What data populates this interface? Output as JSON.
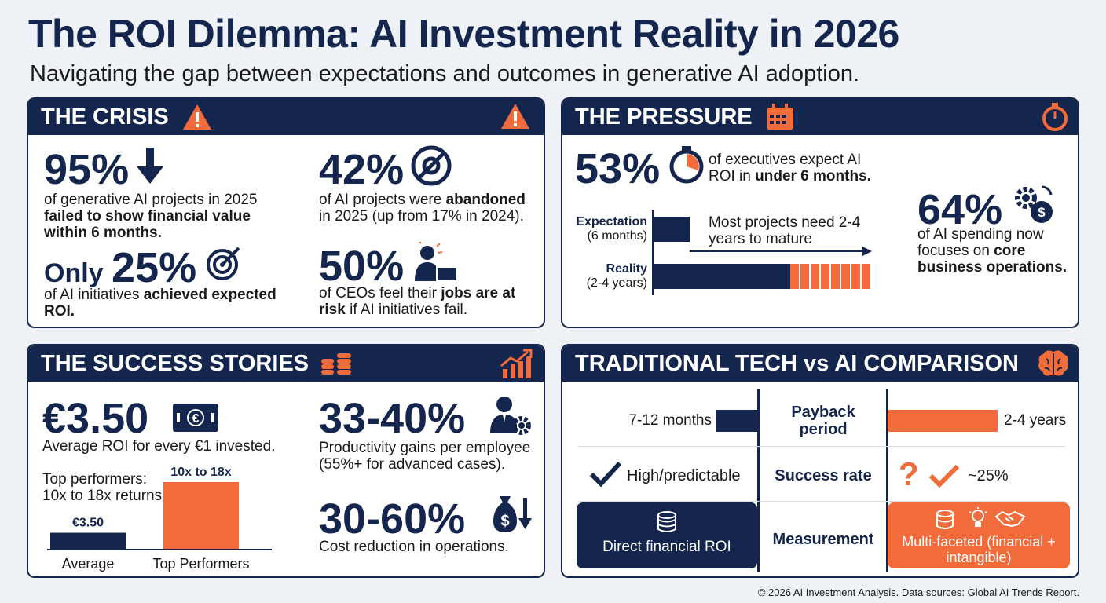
{
  "title": "The ROI Dilemma: AI Investment Reality in 2026",
  "subtitle": "Navigating the gap between expectations and outcomes in generative AI adoption.",
  "crisis": {
    "header": "THE CRISIS",
    "s1": {
      "value": "95%",
      "pre": "of generative AI projects in 2025",
      "bold": "failed to show financial value within 6 months."
    },
    "s2": {
      "value": "42%",
      "pre": "of AI projects were ",
      "bold": "abandoned",
      "post": " in 2025 (up from 17% in 2024)."
    },
    "s3": {
      "prefix": "Only",
      "value": "25%",
      "pre": "of AI initiatives ",
      "bold": "achieved expected ROI."
    },
    "s4": {
      "value": "50%",
      "pre": "of CEOs feel their ",
      "bold": "jobs are at risk",
      "post": " if AI initiatives fail."
    }
  },
  "pressure": {
    "header": "THE PRESSURE",
    "s1": {
      "value": "53%",
      "pre": "of executives expect AI ROI in ",
      "bold": "under 6 months."
    },
    "s2": {
      "value": "64%",
      "pre": "of AI spending now focuses on ",
      "bold": "core business operations."
    },
    "timeline": {
      "expectation_label": "Expectation",
      "expectation_sub": "(6 months)",
      "reality_label": "Reality",
      "reality_sub": "(2-4 years)",
      "note": "Most projects need 2-4 years to mature"
    }
  },
  "success": {
    "header": "THE SUCCESS STORIES",
    "s1": {
      "value": "€3.50",
      "text": "Average ROI for every €1 invested."
    },
    "s2": {
      "value": "33-40%",
      "text": "Productivity gains per employee (55%+ for advanced cases)."
    },
    "s3": {
      "value": "30-60%",
      "text": "Cost reduction in operations."
    },
    "top_note": "Top performers: 10x to 18x returns.",
    "chart_data": {
      "type": "bar",
      "categories": [
        "Average",
        "Top Performers"
      ],
      "values": [
        3.5,
        14
      ],
      "data_labels": [
        "€3.50",
        "10x to 18x"
      ],
      "colors": [
        "#14264d",
        "#f26b3a"
      ]
    }
  },
  "comparison": {
    "header": "TRADITIONAL TECH vs AI COMPARISON",
    "rows": [
      {
        "label": "Payback period",
        "traditional": "7-12 months",
        "ai": "2-4 years"
      },
      {
        "label": "Success rate",
        "traditional": "High/predictable",
        "ai": "~25%"
      },
      {
        "label": "Measurement",
        "traditional": "Direct financial ROI",
        "ai": "Multi-faceted (financial + intangible)"
      }
    ]
  },
  "footer": "© 2026 AI Investment Analysis. Data sources: Global AI Trends Report.",
  "colors": {
    "navy": "#14264d",
    "orange": "#f26b3a"
  }
}
